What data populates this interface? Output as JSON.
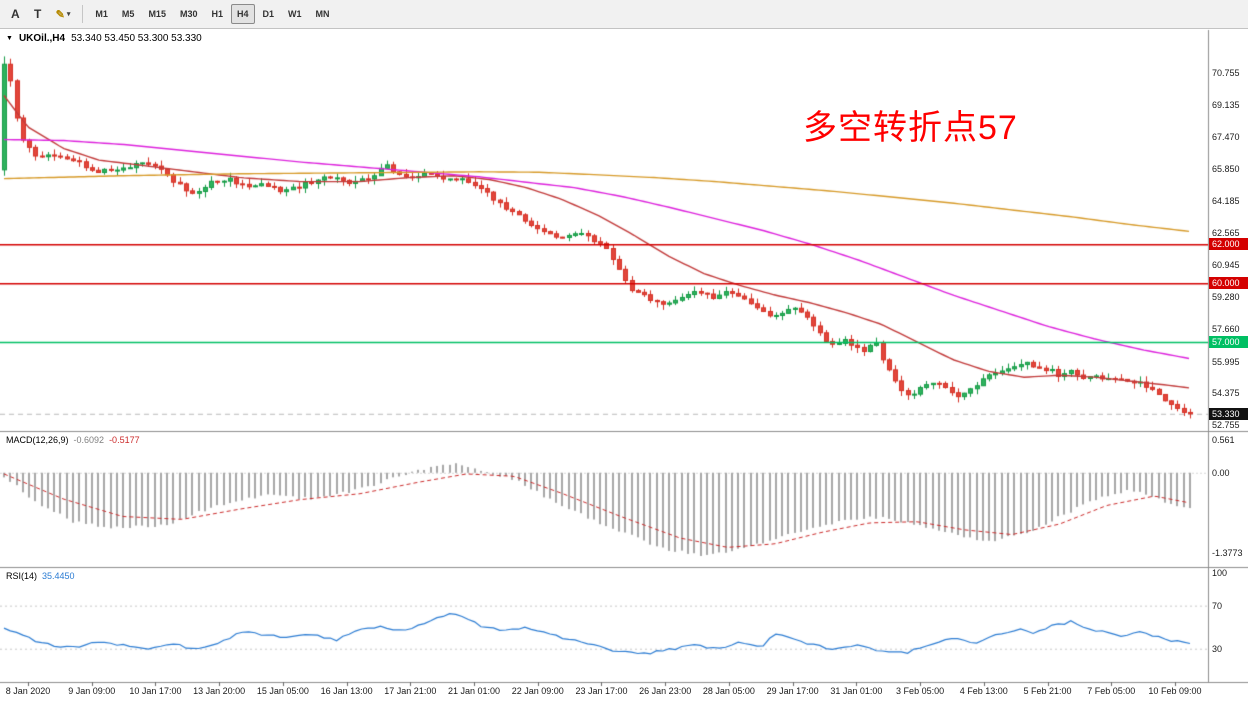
{
  "toolbar": {
    "tools": [
      {
        "id": "font-tool",
        "label": "A"
      },
      {
        "id": "text-tool",
        "label": "T"
      },
      {
        "id": "crayon-tool",
        "label": "✎"
      }
    ],
    "dropdown_arrow": "▾",
    "timeframes": [
      {
        "label": "M1"
      },
      {
        "label": "M5"
      },
      {
        "label": "M15"
      },
      {
        "label": "M30"
      },
      {
        "label": "H1"
      },
      {
        "label": "H4",
        "active": true
      },
      {
        "label": "D1"
      },
      {
        "label": "W1"
      },
      {
        "label": "MN"
      }
    ],
    "active_timeframe": "H4"
  },
  "chart": {
    "symbol_marker": "▼",
    "symbol_title": "UKOil.,H4",
    "ohlc": "53.340 53.450 53.300 53.330",
    "annotation": {
      "text": "多空转折点57",
      "color": "#ff0000"
    }
  },
  "chart_data": {
    "type": "candlestick",
    "symbol": "UKOil",
    "timeframe": "H4",
    "candle_count": 190,
    "current_price": 53.33,
    "bid_label": "53.330",
    "price_axis_ticks": [
      70.755,
      69.135,
      67.47,
      65.85,
      64.185,
      62.565,
      60.945,
      59.28,
      57.66,
      55.995,
      54.375,
      52.755
    ],
    "price_range": {
      "max": 72.95,
      "min": 52.45
    },
    "first_candle": {
      "o": 65.8,
      "h": 71.6,
      "l": 65.5,
      "c": 71.2
    },
    "candle_colors": {
      "up": "#169c46",
      "up_fill": "#2fb25e",
      "down": "#d63126",
      "down_fill": "#e2463b"
    },
    "price_path": [
      [
        0,
        66.8
      ],
      [
        0.003,
        71.2
      ],
      [
        0.01,
        68.6
      ],
      [
        0.018,
        67.0
      ],
      [
        0.03,
        66.4
      ],
      [
        0.045,
        66.6
      ],
      [
        0.06,
        66.2
      ],
      [
        0.08,
        65.7
      ],
      [
        0.1,
        65.8
      ],
      [
        0.115,
        66.2
      ],
      [
        0.13,
        65.9
      ],
      [
        0.15,
        64.9
      ],
      [
        0.16,
        64.6
      ],
      [
        0.175,
        65.2
      ],
      [
        0.19,
        65.3
      ],
      [
        0.205,
        64.9
      ],
      [
        0.22,
        65.1
      ],
      [
        0.235,
        64.7
      ],
      [
        0.25,
        65.0
      ],
      [
        0.265,
        65.3
      ],
      [
        0.28,
        65.4
      ],
      [
        0.295,
        65.1
      ],
      [
        0.31,
        65.5
      ],
      [
        0.322,
        66.0
      ],
      [
        0.33,
        65.6
      ],
      [
        0.345,
        65.4
      ],
      [
        0.36,
        65.6
      ],
      [
        0.375,
        65.3
      ],
      [
        0.388,
        65.4
      ],
      [
        0.4,
        64.9
      ],
      [
        0.412,
        64.4
      ],
      [
        0.425,
        63.7
      ],
      [
        0.44,
        63.2
      ],
      [
        0.455,
        62.7
      ],
      [
        0.468,
        62.2
      ],
      [
        0.48,
        62.5
      ],
      [
        0.492,
        62.4
      ],
      [
        0.505,
        61.9
      ],
      [
        0.515,
        61.2
      ],
      [
        0.528,
        59.6
      ],
      [
        0.545,
        59.2
      ],
      [
        0.558,
        59.0
      ],
      [
        0.572,
        59.3
      ],
      [
        0.585,
        59.6
      ],
      [
        0.597,
        59.3
      ],
      [
        0.61,
        59.6
      ],
      [
        0.623,
        59.2
      ],
      [
        0.638,
        58.6
      ],
      [
        0.652,
        58.3
      ],
      [
        0.665,
        58.7
      ],
      [
        0.678,
        58.2
      ],
      [
        0.69,
        57.2
      ],
      [
        0.7,
        56.8
      ],
      [
        0.71,
        57.1
      ],
      [
        0.722,
        56.5
      ],
      [
        0.735,
        56.9
      ],
      [
        0.745,
        55.6
      ],
      [
        0.755,
        54.6
      ],
      [
        0.765,
        54.2
      ],
      [
        0.775,
        54.8
      ],
      [
        0.785,
        55.0
      ],
      [
        0.795,
        54.5
      ],
      [
        0.805,
        54.1
      ],
      [
        0.815,
        54.6
      ],
      [
        0.825,
        55.1
      ],
      [
        0.838,
        55.4
      ],
      [
        0.85,
        55.7
      ],
      [
        0.86,
        56.0
      ],
      [
        0.87,
        55.6
      ],
      [
        0.88,
        55.6
      ],
      [
        0.89,
        55.3
      ],
      [
        0.9,
        55.5
      ],
      [
        0.91,
        55.2
      ],
      [
        0.92,
        55.4
      ],
      [
        0.93,
        55.0
      ],
      [
        0.94,
        55.2
      ],
      [
        0.95,
        54.8
      ],
      [
        0.96,
        54.9
      ],
      [
        0.97,
        54.4
      ],
      [
        0.98,
        53.9
      ],
      [
        0.99,
        53.5
      ],
      [
        1,
        53.33
      ]
    ],
    "moving_averages": [
      {
        "name": "ma-fast-red",
        "color": "#c23b3b",
        "points": [
          [
            0,
            69.6
          ],
          [
            0.02,
            68.0
          ],
          [
            0.05,
            66.9
          ],
          [
            0.08,
            66.3
          ],
          [
            0.12,
            66.0
          ],
          [
            0.16,
            65.7
          ],
          [
            0.2,
            65.4
          ],
          [
            0.25,
            65.2
          ],
          [
            0.3,
            65.2
          ],
          [
            0.34,
            65.4
          ],
          [
            0.38,
            65.5
          ],
          [
            0.41,
            65.3
          ],
          [
            0.44,
            64.9
          ],
          [
            0.47,
            64.3
          ],
          [
            0.5,
            63.5
          ],
          [
            0.53,
            62.5
          ],
          [
            0.56,
            61.4
          ],
          [
            0.59,
            60.5
          ],
          [
            0.62,
            59.9
          ],
          [
            0.65,
            59.4
          ],
          [
            0.68,
            59.0
          ],
          [
            0.71,
            58.5
          ],
          [
            0.74,
            57.9
          ],
          [
            0.77,
            57.0
          ],
          [
            0.8,
            56.1
          ],
          [
            0.83,
            55.5
          ],
          [
            0.86,
            55.2
          ],
          [
            0.89,
            55.3
          ],
          [
            0.92,
            55.2
          ],
          [
            0.95,
            55.0
          ],
          [
            0.98,
            54.8
          ],
          [
            1,
            54.65
          ]
        ]
      },
      {
        "name": "ma-mid-magenta",
        "color": "#dd22dd",
        "points": [
          [
            0,
            67.35
          ],
          [
            0.05,
            67.3
          ],
          [
            0.1,
            67.1
          ],
          [
            0.15,
            66.8
          ],
          [
            0.2,
            66.5
          ],
          [
            0.25,
            66.2
          ],
          [
            0.3,
            65.95
          ],
          [
            0.35,
            65.7
          ],
          [
            0.4,
            65.45
          ],
          [
            0.45,
            65.1
          ],
          [
            0.48,
            64.9
          ],
          [
            0.52,
            64.45
          ],
          [
            0.56,
            63.9
          ],
          [
            0.6,
            63.3
          ],
          [
            0.64,
            62.7
          ],
          [
            0.68,
            62.0
          ],
          [
            0.72,
            61.2
          ],
          [
            0.76,
            60.3
          ],
          [
            0.8,
            59.4
          ],
          [
            0.84,
            58.6
          ],
          [
            0.88,
            57.8
          ],
          [
            0.92,
            57.15
          ],
          [
            0.96,
            56.6
          ],
          [
            1,
            56.15
          ]
        ]
      },
      {
        "name": "ma-slow-orange",
        "color": "#d79b2a",
        "points": [
          [
            0,
            65.35
          ],
          [
            0.1,
            65.5
          ],
          [
            0.2,
            65.6
          ],
          [
            0.3,
            65.65
          ],
          [
            0.4,
            65.7
          ],
          [
            0.45,
            65.68
          ],
          [
            0.5,
            65.55
          ],
          [
            0.55,
            65.4
          ],
          [
            0.6,
            65.2
          ],
          [
            0.65,
            64.95
          ],
          [
            0.7,
            64.7
          ],
          [
            0.75,
            64.4
          ],
          [
            0.8,
            64.1
          ],
          [
            0.85,
            63.75
          ],
          [
            0.9,
            63.4
          ],
          [
            0.95,
            63.0
          ],
          [
            1,
            62.65
          ]
        ]
      }
    ],
    "levels": [
      {
        "price": 62.0,
        "label": "62.000",
        "color": "#d40000"
      },
      {
        "price": 60.0,
        "label": "60.000",
        "color": "#d40000"
      },
      {
        "price": 57.0,
        "label": "57.000",
        "color": "#00bf63"
      }
    ],
    "time_axis": [
      "8 Jan 2020",
      "9 Jan 09:00",
      "10 Jan 17:00",
      "13 Jan 20:00",
      "15 Jan 05:00",
      "16 Jan 13:00",
      "17 Jan 21:00",
      "21 Jan 01:00",
      "22 Jan 09:00",
      "23 Jan 17:00",
      "26 Jan 23:00",
      "28 Jan 05:00",
      "29 Jan 17:00",
      "31 Jan 01:00",
      "3 Feb 05:00",
      "4 Feb 13:00",
      "5 Feb 21:00",
      "7 Feb 05:00",
      "10 Feb 09:00"
    ]
  },
  "indicators": {
    "macd": {
      "name": "MACD(12,26,9)",
      "value_main": "-0.6092",
      "value_signal": "-0.5177",
      "histogram_color": "#a8a8a8",
      "signal_color": "#cc2b2b",
      "scale_ticks": [
        {
          "label": "0.561",
          "value": 0.561
        },
        {
          "label": "0.00",
          "value": 0
        },
        {
          "label": "-1.3773",
          "value": -1.3773
        }
      ],
      "range": {
        "max": 0.7,
        "min": -1.6
      },
      "line": [
        [
          0,
          -0.05
        ],
        [
          0.03,
          -0.55
        ],
        [
          0.06,
          -0.85
        ],
        [
          0.1,
          -0.95
        ],
        [
          0.14,
          -0.88
        ],
        [
          0.18,
          -0.55
        ],
        [
          0.22,
          -0.38
        ],
        [
          0.26,
          -0.45
        ],
        [
          0.3,
          -0.28
        ],
        [
          0.33,
          -0.08
        ],
        [
          0.36,
          0.08
        ],
        [
          0.385,
          0.15
        ],
        [
          0.4,
          0.05
        ],
        [
          0.43,
          -0.12
        ],
        [
          0.46,
          -0.45
        ],
        [
          0.5,
          -0.85
        ],
        [
          0.53,
          -1.1
        ],
        [
          0.56,
          -1.32
        ],
        [
          0.59,
          -1.42
        ],
        [
          0.62,
          -1.3
        ],
        [
          0.65,
          -1.15
        ],
        [
          0.68,
          -0.95
        ],
        [
          0.71,
          -0.8
        ],
        [
          0.74,
          -0.76
        ],
        [
          0.77,
          -0.9
        ],
        [
          0.8,
          -1.05
        ],
        [
          0.83,
          -1.18
        ],
        [
          0.86,
          -1.05
        ],
        [
          0.89,
          -0.75
        ],
        [
          0.92,
          -0.45
        ],
        [
          0.95,
          -0.3
        ],
        [
          0.975,
          -0.48
        ],
        [
          1,
          -0.6092
        ]
      ],
      "signal": [
        [
          0,
          -0.02
        ],
        [
          0.05,
          -0.45
        ],
        [
          0.1,
          -0.75
        ],
        [
          0.15,
          -0.8
        ],
        [
          0.2,
          -0.62
        ],
        [
          0.25,
          -0.46
        ],
        [
          0.3,
          -0.36
        ],
        [
          0.35,
          -0.16
        ],
        [
          0.39,
          -0.02
        ],
        [
          0.43,
          -0.06
        ],
        [
          0.47,
          -0.35
        ],
        [
          0.52,
          -0.75
        ],
        [
          0.57,
          -1.12
        ],
        [
          0.61,
          -1.28
        ],
        [
          0.65,
          -1.22
        ],
        [
          0.69,
          -1.02
        ],
        [
          0.73,
          -0.86
        ],
        [
          0.77,
          -0.84
        ],
        [
          0.81,
          -0.98
        ],
        [
          0.85,
          -1.06
        ],
        [
          0.89,
          -0.88
        ],
        [
          0.93,
          -0.56
        ],
        [
          0.97,
          -0.4
        ],
        [
          1,
          -0.5177
        ]
      ]
    },
    "rsi": {
      "name": "RSI(14)",
      "value": "35.4450",
      "color": "#2b7cd3",
      "scale_ticks": [
        {
          "label": "100",
          "value": 100
        },
        {
          "label": "70",
          "value": 70
        },
        {
          "label": "30",
          "value": 30
        }
      ],
      "levels": [
        70,
        30
      ],
      "range": {
        "max": 105,
        "min": 0
      },
      "points": [
        [
          0,
          50
        ],
        [
          0.02,
          40
        ],
        [
          0.04,
          33
        ],
        [
          0.06,
          31
        ],
        [
          0.08,
          37
        ],
        [
          0.1,
          33
        ],
        [
          0.12,
          30
        ],
        [
          0.14,
          35
        ],
        [
          0.16,
          30
        ],
        [
          0.18,
          34
        ],
        [
          0.2,
          46
        ],
        [
          0.22,
          43
        ],
        [
          0.24,
          40
        ],
        [
          0.26,
          44
        ],
        [
          0.28,
          38
        ],
        [
          0.3,
          48
        ],
        [
          0.32,
          50
        ],
        [
          0.34,
          46
        ],
        [
          0.36,
          57
        ],
        [
          0.38,
          63
        ],
        [
          0.4,
          52
        ],
        [
          0.42,
          47
        ],
        [
          0.44,
          50
        ],
        [
          0.46,
          43
        ],
        [
          0.48,
          38
        ],
        [
          0.5,
          33
        ],
        [
          0.52,
          27
        ],
        [
          0.54,
          25
        ],
        [
          0.56,
          29
        ],
        [
          0.58,
          33
        ],
        [
          0.6,
          30
        ],
        [
          0.62,
          36
        ],
        [
          0.64,
          32
        ],
        [
          0.65,
          44
        ],
        [
          0.66,
          40
        ],
        [
          0.68,
          34
        ],
        [
          0.7,
          29
        ],
        [
          0.72,
          33
        ],
        [
          0.74,
          28
        ],
        [
          0.76,
          26
        ],
        [
          0.78,
          34
        ],
        [
          0.8,
          39
        ],
        [
          0.82,
          36
        ],
        [
          0.84,
          44
        ],
        [
          0.86,
          48
        ],
        [
          0.87,
          44
        ],
        [
          0.88,
          50
        ],
        [
          0.9,
          55
        ],
        [
          0.92,
          47
        ],
        [
          0.94,
          42
        ],
        [
          0.96,
          46
        ],
        [
          0.98,
          38
        ],
        [
          1,
          35.445
        ]
      ]
    }
  }
}
